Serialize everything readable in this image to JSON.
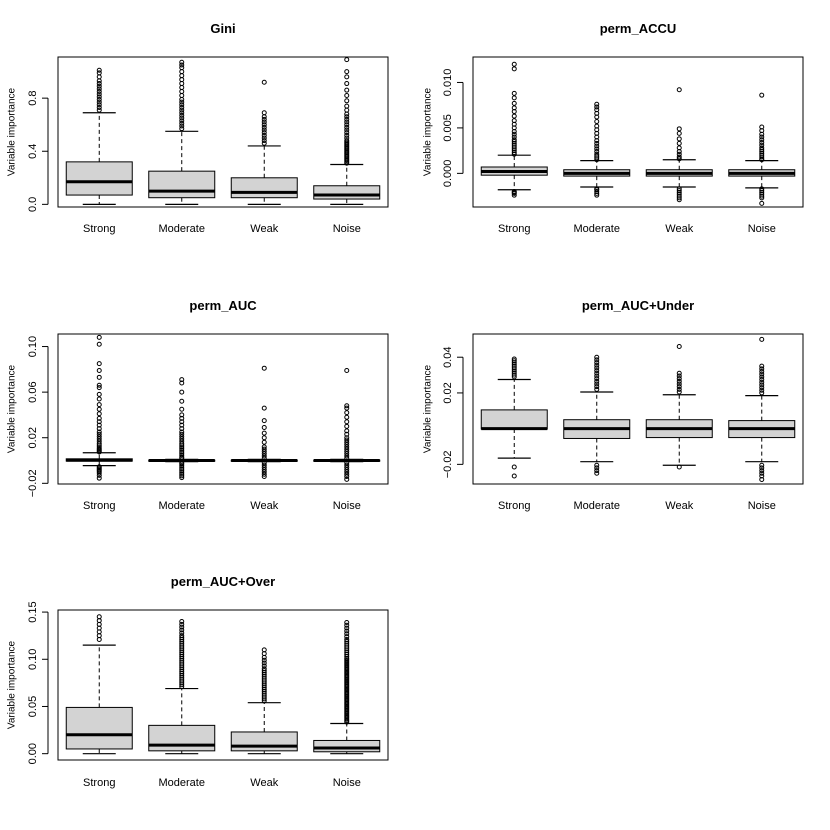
{
  "chart_data": [
    {
      "type": "boxplot",
      "title": "Gini",
      "ylabel": "Variable importance",
      "categories": [
        "Strong",
        "Moderate",
        "Weak",
        "Noise"
      ],
      "ylim": [
        -0.02,
        1.11
      ],
      "yticks": [
        0.0,
        0.4,
        0.8
      ],
      "ytick_labels": [
        "0.0",
        "0.4",
        "0.8"
      ],
      "boxes": [
        {
          "whisker_low": 0.0,
          "q1": 0.07,
          "median": 0.17,
          "q3": 0.32,
          "whisker_high": 0.69,
          "outliers": [
            0.71,
            0.73,
            0.75,
            0.77,
            0.79,
            0.81,
            0.83,
            0.85,
            0.87,
            0.89,
            0.91,
            0.93,
            0.96,
            0.99,
            1.01
          ]
        },
        {
          "whisker_low": 0.0,
          "q1": 0.05,
          "median": 0.1,
          "q3": 0.25,
          "whisker_high": 0.55,
          "outliers": [
            0.57,
            0.59,
            0.61,
            0.63,
            0.65,
            0.67,
            0.69,
            0.71,
            0.73,
            0.75,
            0.77,
            0.79,
            0.82,
            0.85,
            0.88,
            0.91,
            0.94,
            0.97,
            1.0,
            1.03,
            1.05,
            1.07
          ]
        },
        {
          "whisker_low": 0.0,
          "q1": 0.05,
          "median": 0.09,
          "q3": 0.2,
          "whisker_high": 0.44,
          "outliers": [
            0.46,
            0.48,
            0.5,
            0.52,
            0.54,
            0.56,
            0.58,
            0.6,
            0.62,
            0.64,
            0.66,
            0.69,
            0.92
          ]
        },
        {
          "whisker_low": 0.0,
          "q1": 0.04,
          "median": 0.07,
          "q3": 0.14,
          "whisker_high": 0.3,
          "outliers": [
            0.31,
            0.32,
            0.33,
            0.34,
            0.35,
            0.36,
            0.37,
            0.38,
            0.39,
            0.4,
            0.41,
            0.42,
            0.43,
            0.44,
            0.45,
            0.46,
            0.47,
            0.48,
            0.5,
            0.52,
            0.54,
            0.56,
            0.58,
            0.6,
            0.62,
            0.64,
            0.66,
            0.68,
            0.71,
            0.74,
            0.78,
            0.82,
            0.86,
            0.91,
            0.96,
            1.0,
            1.09
          ]
        }
      ]
    },
    {
      "type": "boxplot",
      "title": "perm_ACCU",
      "ylabel": "Variable importance",
      "categories": [
        "Strong",
        "Moderate",
        "Weak",
        "Noise"
      ],
      "ylim": [
        -0.0037,
        0.0128
      ],
      "yticks": [
        0.0,
        0.005,
        0.01
      ],
      "ytick_labels": [
        "0.000",
        "0.005",
        "0.010"
      ],
      "boxes": [
        {
          "whisker_low": -0.0018,
          "q1": -0.0002,
          "median": 0.0002,
          "q3": 0.0007,
          "whisker_high": 0.002,
          "outliers": [
            -0.0024,
            -0.0022,
            -0.0021,
            -0.002,
            0.0021,
            0.0023,
            0.0025,
            0.0027,
            0.0029,
            0.0031,
            0.0033,
            0.0035,
            0.0037,
            0.004,
            0.0043,
            0.0046,
            0.005,
            0.0054,
            0.0058,
            0.0063,
            0.0068,
            0.0072,
            0.0077,
            0.0083,
            0.0088,
            0.0115,
            0.012
          ]
        },
        {
          "whisker_low": -0.0015,
          "q1": -0.0003,
          "median": 0.0,
          "q3": 0.0004,
          "whisker_high": 0.0014,
          "outliers": [
            -0.0024,
            -0.0022,
            -0.002,
            -0.0018,
            -0.0017,
            0.0015,
            0.0017,
            0.0019,
            0.0021,
            0.0024,
            0.0027,
            0.003,
            0.0033,
            0.0036,
            0.004,
            0.0044,
            0.0048,
            0.0052,
            0.0057,
            0.0062,
            0.0066,
            0.007,
            0.0073,
            0.0076
          ]
        },
        {
          "whisker_low": -0.0015,
          "q1": -0.0003,
          "median": 0.0,
          "q3": 0.0004,
          "whisker_high": 0.0015,
          "outliers": [
            -0.0029,
            -0.0027,
            -0.0025,
            -0.0023,
            -0.0021,
            -0.0019,
            -0.0017,
            0.0016,
            0.0018,
            0.0021,
            0.0024,
            0.0028,
            0.0033,
            0.0038,
            0.0044,
            0.0049,
            0.0092
          ]
        },
        {
          "whisker_low": -0.0016,
          "q1": -0.0003,
          "median": 0.0,
          "q3": 0.0004,
          "whisker_high": 0.0014,
          "outliers": [
            -0.0033,
            -0.0027,
            -0.0025,
            -0.0023,
            -0.0021,
            -0.0019,
            -0.0017,
            0.0015,
            0.0016,
            0.0018,
            0.002,
            0.0022,
            0.0024,
            0.0026,
            0.0028,
            0.0031,
            0.0034,
            0.0037,
            0.004,
            0.0043,
            0.0047,
            0.0051,
            0.0086
          ]
        }
      ]
    },
    {
      "type": "boxplot",
      "title": "perm_AUC",
      "ylabel": "Variable importance",
      "categories": [
        "Strong",
        "Moderate",
        "Weak",
        "Noise"
      ],
      "ylim": [
        -0.0206,
        0.111
      ],
      "yticks": [
        -0.02,
        0.02,
        0.06,
        0.1
      ],
      "ytick_labels": [
        "−0.02",
        "0.02",
        "0.06",
        "0.10"
      ],
      "boxes": [
        {
          "whisker_low": -0.0045,
          "q1": -0.0005,
          "median": 0.0002,
          "q3": 0.0015,
          "whisker_high": 0.0068,
          "outliers": [
            -0.0155,
            -0.013,
            -0.011,
            -0.0095,
            -0.0085,
            -0.0075,
            -0.0065,
            -0.0055,
            0.0075,
            0.0085,
            0.0095,
            0.0105,
            0.012,
            0.0135,
            0.015,
            0.017,
            0.019,
            0.021,
            0.023,
            0.025,
            0.028,
            0.031,
            0.034,
            0.037,
            0.041,
            0.045,
            0.049,
            0.054,
            0.058,
            0.064,
            0.066,
            0.073,
            0.079,
            0.085,
            0.102,
            0.108
          ]
        },
        {
          "whisker_low": -0.001,
          "q1": -0.0003,
          "median": 0.0,
          "q3": 0.0003,
          "whisker_high": 0.001,
          "outliers": [
            -0.015,
            -0.0135,
            -0.012,
            -0.0105,
            -0.009,
            -0.0075,
            -0.006,
            -0.0045,
            -0.003,
            -0.002,
            0.002,
            0.003,
            0.0045,
            0.006,
            0.0075,
            0.009,
            0.0105,
            0.012,
            0.0135,
            0.015,
            0.017,
            0.019,
            0.021,
            0.023,
            0.025,
            0.028,
            0.031,
            0.034,
            0.037,
            0.04,
            0.045,
            0.052,
            0.06,
            0.068,
            0.071
          ]
        },
        {
          "whisker_low": -0.001,
          "q1": -0.0003,
          "median": 0.0,
          "q3": 0.0003,
          "whisker_high": 0.001,
          "outliers": [
            -0.014,
            -0.012,
            -0.01,
            -0.008,
            -0.006,
            -0.004,
            -0.002,
            0.002,
            0.004,
            0.006,
            0.008,
            0.01,
            0.012,
            0.016,
            0.02,
            0.024,
            0.029,
            0.035,
            0.046,
            0.081
          ]
        },
        {
          "whisker_low": -0.001,
          "q1": -0.0003,
          "median": 0.0,
          "q3": 0.0003,
          "whisker_high": 0.001,
          "outliers": [
            -0.0165,
            -0.014,
            -0.012,
            -0.01,
            -0.008,
            -0.006,
            -0.004,
            -0.002,
            0.002,
            0.004,
            0.006,
            0.008,
            0.01,
            0.012,
            0.014,
            0.016,
            0.018,
            0.02,
            0.023,
            0.026,
            0.03,
            0.034,
            0.038,
            0.042,
            0.046,
            0.048,
            0.079
          ]
        }
      ]
    },
    {
      "type": "boxplot",
      "title": "perm_AUC+Under",
      "ylabel": "Variable importance",
      "categories": [
        "Strong",
        "Moderate",
        "Weak",
        "Noise"
      ],
      "ylim": [
        -0.031,
        0.053
      ],
      "yticks": [
        -0.02,
        0.02,
        0.04
      ],
      "ytick_labels": [
        "−0.02",
        "0.02",
        "0.04"
      ],
      "boxes": [
        {
          "whisker_low": -0.0165,
          "q1": -0.0002,
          "median": 0.0,
          "q3": 0.0105,
          "whisker_high": 0.0275,
          "outliers": [
            -0.0265,
            -0.0215,
            0.029,
            0.03,
            0.031,
            0.032,
            0.033,
            0.034,
            0.035,
            0.036,
            0.037,
            0.038,
            0.039
          ]
        },
        {
          "whisker_low": -0.0185,
          "q1": -0.0055,
          "median": 0.0,
          "q3": 0.005,
          "whisker_high": 0.0205,
          "outliers": [
            -0.025,
            -0.0235,
            -0.022,
            -0.0205,
            0.022,
            0.0235,
            0.025,
            0.0265,
            0.028,
            0.0295,
            0.031,
            0.0325,
            0.034,
            0.0355,
            0.037,
            0.0385,
            0.04
          ]
        },
        {
          "whisker_low": -0.0205,
          "q1": -0.005,
          "median": 0.0,
          "q3": 0.005,
          "whisker_high": 0.019,
          "outliers": [
            -0.0215,
            0.0205,
            0.022,
            0.0235,
            0.025,
            0.0265,
            0.028,
            0.0295,
            0.031,
            0.046
          ]
        },
        {
          "whisker_low": -0.0185,
          "q1": -0.005,
          "median": 0.0,
          "q3": 0.0045,
          "whisker_high": 0.0185,
          "outliers": [
            -0.0285,
            -0.0265,
            -0.025,
            -0.0235,
            -0.022,
            -0.0205,
            0.02,
            0.0215,
            0.023,
            0.0245,
            0.026,
            0.0275,
            0.029,
            0.0305,
            0.032,
            0.0335,
            0.035,
            0.05
          ]
        }
      ]
    },
    {
      "type": "boxplot",
      "title": "perm_AUC+Over",
      "ylabel": "Variable importance",
      "categories": [
        "Strong",
        "Moderate",
        "Weak",
        "Noise"
      ],
      "ylim": [
        -0.0067,
        0.1522
      ],
      "yticks": [
        0.0,
        0.05,
        0.1,
        0.15
      ],
      "ytick_labels": [
        "0.00",
        "0.05",
        "0.10",
        "0.15"
      ],
      "boxes": [
        {
          "whisker_low": 0.0,
          "q1": 0.005,
          "median": 0.02,
          "q3": 0.049,
          "whisker_high": 0.115,
          "outliers": [
            0.121,
            0.125,
            0.129,
            0.133,
            0.137,
            0.141,
            0.145
          ]
        },
        {
          "whisker_low": 0.0,
          "q1": 0.003,
          "median": 0.009,
          "q3": 0.03,
          "whisker_high": 0.069,
          "outliers": [
            0.071,
            0.073,
            0.075,
            0.077,
            0.079,
            0.081,
            0.083,
            0.085,
            0.087,
            0.089,
            0.091,
            0.093,
            0.095,
            0.097,
            0.099,
            0.101,
            0.103,
            0.105,
            0.107,
            0.109,
            0.111,
            0.113,
            0.115,
            0.117,
            0.119,
            0.121,
            0.123,
            0.125,
            0.128,
            0.131,
            0.134,
            0.137,
            0.14
          ]
        },
        {
          "whisker_low": 0.0,
          "q1": 0.003,
          "median": 0.008,
          "q3": 0.023,
          "whisker_high": 0.054,
          "outliers": [
            0.056,
            0.058,
            0.06,
            0.062,
            0.064,
            0.066,
            0.068,
            0.07,
            0.072,
            0.074,
            0.076,
            0.078,
            0.08,
            0.082,
            0.084,
            0.086,
            0.088,
            0.09,
            0.093,
            0.096,
            0.099,
            0.102,
            0.106,
            0.11
          ]
        },
        {
          "whisker_low": 0.0,
          "q1": 0.002,
          "median": 0.006,
          "q3": 0.014,
          "whisker_high": 0.032,
          "outliers": [
            0.0335,
            0.035,
            0.0365,
            0.038,
            0.0395,
            0.041,
            0.0425,
            0.044,
            0.0455,
            0.047,
            0.0485,
            0.05,
            0.0515,
            0.053,
            0.0545,
            0.056,
            0.0575,
            0.059,
            0.0605,
            0.062,
            0.0635,
            0.065,
            0.0665,
            0.068,
            0.0695,
            0.071,
            0.0725,
            0.074,
            0.0755,
            0.077,
            0.0785,
            0.08,
            0.0815,
            0.083,
            0.0845,
            0.086,
            0.0875,
            0.089,
            0.0905,
            0.092,
            0.0935,
            0.095,
            0.0965,
            0.098,
            0.0995,
            0.101,
            0.103,
            0.105,
            0.107,
            0.109,
            0.111,
            0.113,
            0.115,
            0.117,
            0.119,
            0.121,
            0.124,
            0.127,
            0.13,
            0.133,
            0.136,
            0.139
          ]
        }
      ]
    }
  ]
}
